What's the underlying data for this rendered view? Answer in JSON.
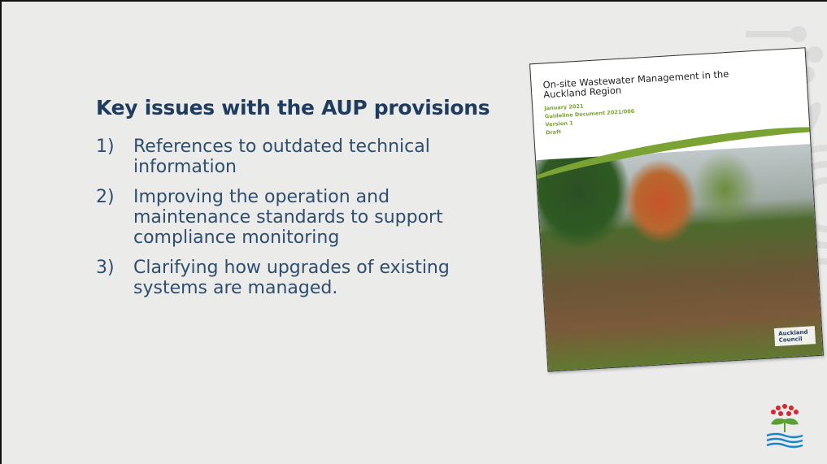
{
  "slide": {
    "title": "Key issues with the AUP provisions",
    "items": [
      {
        "number": "1)",
        "text": "References to outdated technical information"
      },
      {
        "number": "2)",
        "text": "Improving the operation and maintenance standards to support compliance monitoring"
      },
      {
        "number": "3)",
        "text": "Clarifying how upgrades of existing systems are managed."
      }
    ]
  },
  "cover": {
    "title": "On-site Wastewater Management in the Auckland Region",
    "lines": [
      "January 2021",
      "Guideline Document 2021/006",
      "Version 1",
      "Draft"
    ],
    "logo": "Auckland Council"
  }
}
